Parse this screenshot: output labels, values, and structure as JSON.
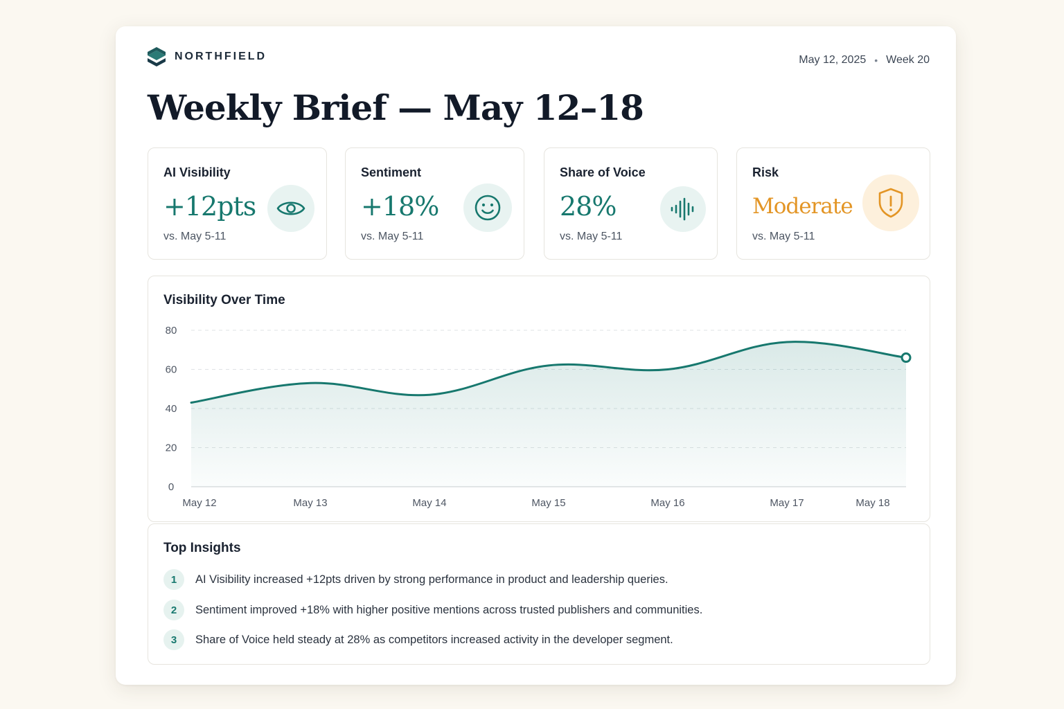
{
  "header": {
    "brand": "NORTHFIELD",
    "date": "May 12, 2025",
    "separator": "•",
    "week": "Week 20",
    "title": "Weekly Brief — May 12–18"
  },
  "kpis": [
    {
      "label": "AI Visibility",
      "value": "+12pts",
      "sub": "vs. May 5-11",
      "icon": "eye-icon"
    },
    {
      "label": "Sentiment",
      "value": "+18%",
      "sub": "vs. May 5-11",
      "icon": "smiley-icon"
    },
    {
      "label": "Share of Voice",
      "value": "28%",
      "sub": "vs. May 5-11",
      "icon": "soundwave-icon"
    },
    {
      "label": "Risk",
      "value": "Moderate",
      "sub": "vs. May 5-11",
      "icon": "shield-alert-icon"
    }
  ],
  "colors": {
    "accent": "#17786e",
    "warning": "#e39525"
  },
  "chart_title": "Visibility Over Time",
  "chart_data": {
    "type": "area",
    "title": "Visibility Over Time",
    "categories": [
      "May 12",
      "May 13",
      "May 14",
      "May 15",
      "May 16",
      "May 17",
      "May 18"
    ],
    "values": [
      43,
      53,
      47,
      62,
      60,
      74,
      66
    ],
    "ylim": [
      0,
      80
    ],
    "yticks": [
      0,
      20,
      40,
      60,
      80
    ],
    "grid": true
  },
  "insights": {
    "title": "Top Insights",
    "items": [
      {
        "num": "1",
        "text": "AI Visibility increased +12pts driven by strong performance in product and leadership queries."
      },
      {
        "num": "2",
        "text": "Sentiment improved +18% with higher positive mentions across trusted publishers and communities."
      },
      {
        "num": "3",
        "text": "Share of Voice held steady at 28% as competitors increased activity in the developer segment."
      }
    ]
  }
}
